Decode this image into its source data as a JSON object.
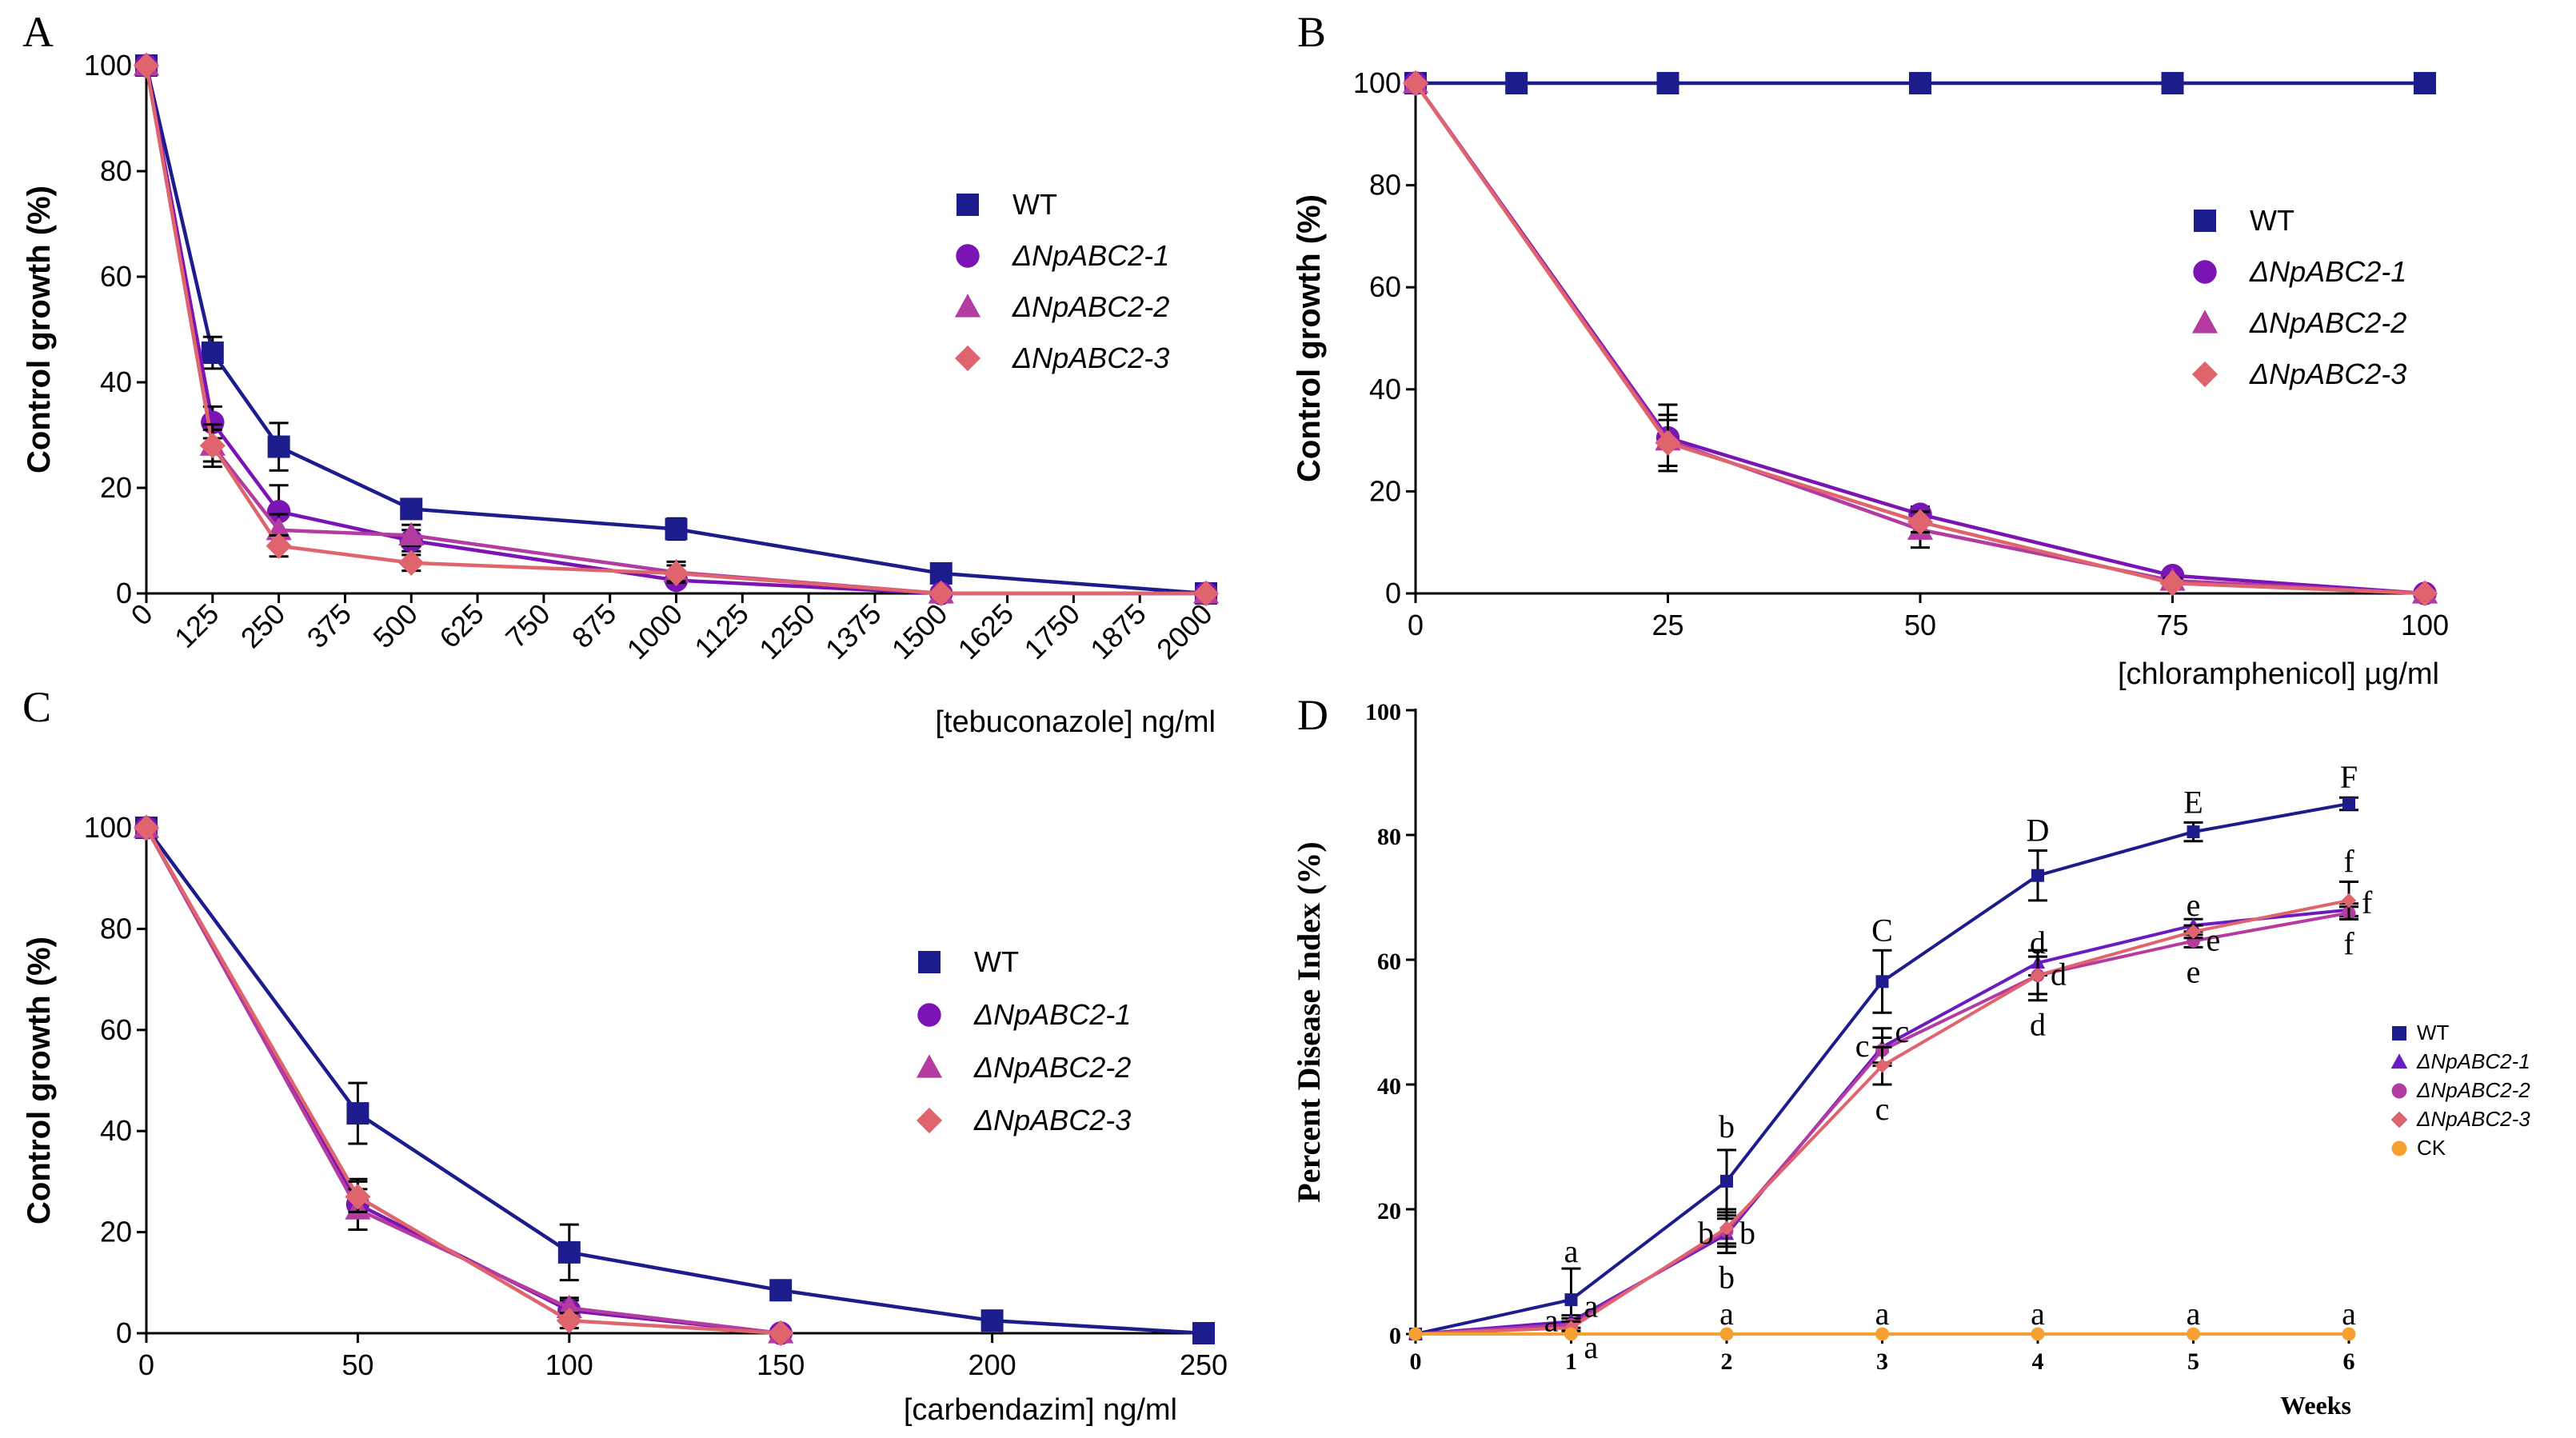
{
  "chart_data": [
    {
      "panel": "A",
      "type": "line",
      "xlabel": "[tebuconazole] ng/ml",
      "ylabel": "Control growth (%)",
      "x_scale": "categorical-linear",
      "xticks": [
        0,
        125,
        250,
        375,
        500,
        625,
        750,
        875,
        1000,
        1125,
        1250,
        1375,
        1500,
        1625,
        1750,
        1875,
        2000
      ],
      "yticks": [
        0,
        20,
        40,
        60,
        80,
        100
      ],
      "xlim": [
        0,
        2000
      ],
      "ylim": [
        0,
        100
      ],
      "legend_position": "right",
      "series": [
        {
          "name": "WT",
          "italic": false,
          "color": "#1c1c8c",
          "marker": "square",
          "x": [
            0,
            125,
            250,
            500,
            1000,
            1500,
            2000
          ],
          "y": [
            100,
            45.6,
            27.8,
            16,
            12.2,
            3.8,
            0
          ],
          "err": [
            0,
            3,
            4.5,
            1.5,
            2,
            0,
            0
          ]
        },
        {
          "name": "ΔNpABC2-1",
          "italic": true,
          "color": "#7a14b4",
          "marker": "circle",
          "x": [
            0,
            125,
            250,
            500,
            1000,
            1500,
            2000
          ],
          "y": [
            100,
            32.4,
            15.5,
            10,
            2.5,
            0,
            0
          ],
          "err": [
            0,
            3,
            5,
            2,
            1,
            0,
            0
          ]
        },
        {
          "name": "ΔNpABC2-2",
          "italic": true,
          "color": "#b43ca0",
          "marker": "triangle",
          "x": [
            0,
            125,
            250,
            500,
            1000,
            1500,
            2000
          ],
          "y": [
            100,
            28,
            12,
            11,
            4,
            0,
            0
          ],
          "err": [
            0,
            3,
            3,
            2,
            2,
            0,
            0
          ]
        },
        {
          "name": "ΔNpABC2-3",
          "italic": true,
          "color": "#e0646e",
          "marker": "diamond",
          "x": [
            0,
            125,
            250,
            500,
            1000,
            1500,
            2000
          ],
          "y": [
            100,
            28,
            9,
            5.8,
            3.8,
            0,
            0
          ],
          "err": [
            0,
            4,
            2,
            1.5,
            1.5,
            0,
            0
          ]
        }
      ]
    },
    {
      "panel": "B",
      "type": "line",
      "xlabel": "[chloramphenicol] µg/ml",
      "ylabel": "Control growth (%)",
      "xticks": [
        0,
        25,
        50,
        75,
        100
      ],
      "yticks": [
        0,
        20,
        40,
        60,
        80,
        100
      ],
      "xlim": [
        0,
        100
      ],
      "ylim": [
        0,
        100
      ],
      "legend_position": "right",
      "series": [
        {
          "name": "WT",
          "italic": false,
          "color": "#1c1c8c",
          "marker": "square",
          "x": [
            0,
            10,
            25,
            50,
            75,
            100
          ],
          "y": [
            100,
            100,
            100,
            100,
            100,
            100
          ],
          "err": [
            0,
            0,
            0,
            0,
            0,
            0
          ]
        },
        {
          "name": "ΔNpABC2-1",
          "italic": true,
          "color": "#7a14b4",
          "marker": "circle",
          "x": [
            0,
            25,
            50,
            75,
            100
          ],
          "y": [
            100,
            30.5,
            15.5,
            3.5,
            0
          ],
          "err": [
            0,
            6.5,
            1.5,
            0.5,
            0
          ]
        },
        {
          "name": "ΔNpABC2-2",
          "italic": true,
          "color": "#b43ca0",
          "marker": "triangle",
          "x": [
            0,
            25,
            50,
            75,
            100
          ],
          "y": [
            100,
            30,
            12.5,
            2.5,
            0
          ],
          "err": [
            0,
            5,
            3.5,
            0.5,
            0
          ]
        },
        {
          "name": "ΔNpABC2-3",
          "italic": true,
          "color": "#e0646e",
          "marker": "diamond",
          "x": [
            0,
            25,
            50,
            75,
            100
          ],
          "y": [
            100,
            29.5,
            14,
            2,
            0
          ],
          "err": [
            0,
            4.5,
            2,
            0.5,
            0
          ]
        }
      ]
    },
    {
      "panel": "C",
      "type": "line",
      "xlabel": "[carbendazim] ng/ml",
      "ylabel": "Control growth (%)",
      "xticks": [
        0,
        50,
        100,
        150,
        200,
        250
      ],
      "yticks": [
        0,
        20,
        40,
        60,
        80,
        100
      ],
      "xlim": [
        0,
        250
      ],
      "ylim": [
        0,
        100
      ],
      "legend_position": "right",
      "series": [
        {
          "name": "WT",
          "italic": false,
          "color": "#1c1c8c",
          "marker": "square",
          "x": [
            0,
            50,
            100,
            150,
            200,
            250
          ],
          "y": [
            100,
            43.5,
            16,
            8.5,
            2.5,
            0
          ],
          "err": [
            0,
            6,
            5.5,
            1,
            0.5,
            0
          ]
        },
        {
          "name": "ΔNpABC2-1",
          "italic": true,
          "color": "#7a14b4",
          "marker": "circle",
          "x": [
            0,
            50,
            100,
            150
          ],
          "y": [
            100,
            25.5,
            4.5,
            0
          ],
          "err": [
            0,
            5,
            2,
            0
          ]
        },
        {
          "name": "ΔNpABC2-2",
          "italic": true,
          "color": "#b43ca0",
          "marker": "triangle",
          "x": [
            0,
            50,
            100,
            150
          ],
          "y": [
            100,
            24.5,
            5,
            0
          ],
          "err": [
            0,
            4,
            2,
            0
          ]
        },
        {
          "name": "ΔNpABC2-3",
          "italic": true,
          "color": "#e0646e",
          "marker": "diamond",
          "x": [
            0,
            50,
            100,
            150
          ],
          "y": [
            100,
            27,
            2.5,
            0
          ],
          "err": [
            0,
            3,
            1.5,
            0
          ]
        }
      ]
    },
    {
      "panel": "D",
      "type": "line",
      "xlabel": "Weeks",
      "ylabel": "Percent Disease Index (%)",
      "xticks": [
        0,
        1,
        2,
        3,
        4,
        5,
        6
      ],
      "yticks": [
        0,
        20,
        40,
        60,
        80,
        100
      ],
      "xlim": [
        0,
        6
      ],
      "ylim": [
        0,
        100
      ],
      "legend_position": "right",
      "series": [
        {
          "name": "WT",
          "italic": false,
          "color": "#1c1c8c",
          "marker": "square",
          "x": [
            0,
            1,
            2,
            3,
            4,
            5,
            6
          ],
          "y": [
            0,
            5.5,
            24.5,
            56.5,
            73.5,
            80.5,
            85
          ],
          "err": [
            0,
            5,
            5,
            5,
            4,
            1.5,
            1
          ]
        },
        {
          "name": "ΔNpABC2-1",
          "italic": true,
          "color": "#6a1cc0",
          "marker": "triangle",
          "x": [
            0,
            1,
            2,
            3,
            4,
            5,
            6
          ],
          "y": [
            0,
            2,
            16,
            46,
            59.5,
            65.5,
            68
          ],
          "err": [
            0,
            1,
            3,
            3,
            2,
            1,
            1
          ]
        },
        {
          "name": "ΔNpABC2-2",
          "italic": true,
          "color": "#b43ca0",
          "marker": "circle",
          "x": [
            0,
            1,
            2,
            3,
            4,
            5,
            6
          ],
          "y": [
            0,
            1.5,
            16.5,
            45.5,
            57.5,
            63,
            67.5
          ],
          "err": [
            0,
            1,
            2,
            2,
            3,
            1,
            1
          ]
        },
        {
          "name": "ΔNpABC2-3",
          "italic": true,
          "color": "#e0646e",
          "marker": "diamond",
          "x": [
            0,
            1,
            2,
            3,
            4,
            5,
            6
          ],
          "y": [
            0,
            1,
            17,
            43,
            57.5,
            64.5,
            69.5
          ],
          "err": [
            0,
            1,
            3,
            3,
            4,
            1,
            3
          ]
        },
        {
          "name": "CK",
          "italic": false,
          "color": "#f5a030",
          "marker": "circle",
          "x": [
            0,
            1,
            2,
            3,
            4,
            5,
            6
          ],
          "y": [
            0,
            0,
            0,
            0,
            0,
            0,
            0
          ],
          "err": [
            0,
            0,
            0,
            0,
            0,
            0,
            0
          ]
        }
      ],
      "annotations": [
        {
          "x": 1,
          "y": 10,
          "text": "a",
          "place": "above"
        },
        {
          "x": 1,
          "y": 2,
          "text": "a",
          "place": "right-up"
        },
        {
          "x": 1,
          "y": 2,
          "text": "a",
          "place": "left"
        },
        {
          "x": 1,
          "y": 0,
          "text": "a",
          "place": "right-down"
        },
        {
          "x": 2,
          "y": 30,
          "text": "b",
          "place": "above"
        },
        {
          "x": 2,
          "y": 16,
          "text": "b",
          "place": "left"
        },
        {
          "x": 2,
          "y": 16,
          "text": "b",
          "place": "right"
        },
        {
          "x": 2,
          "y": 13,
          "text": "b",
          "place": "below"
        },
        {
          "x": 3,
          "y": 61.5,
          "text": "C",
          "place": "above"
        },
        {
          "x": 3,
          "y": 46,
          "text": "c",
          "place": "left"
        },
        {
          "x": 3,
          "y": 46,
          "text": "c",
          "place": "right-up"
        },
        {
          "x": 3,
          "y": 40,
          "text": "c",
          "place": "below"
        },
        {
          "x": 4,
          "y": 77.5,
          "text": "D",
          "place": "above"
        },
        {
          "x": 4,
          "y": 59.5,
          "text": "d",
          "place": "above"
        },
        {
          "x": 4,
          "y": 57.5,
          "text": "d",
          "place": "right"
        },
        {
          "x": 4,
          "y": 53.5,
          "text": "d",
          "place": "below"
        },
        {
          "x": 5,
          "y": 82,
          "text": "E",
          "place": "above"
        },
        {
          "x": 5,
          "y": 65.5,
          "text": "e",
          "place": "above"
        },
        {
          "x": 5,
          "y": 63,
          "text": "e",
          "place": "right"
        },
        {
          "x": 5,
          "y": 62,
          "text": "e",
          "place": "below"
        },
        {
          "x": 6,
          "y": 86,
          "text": "F",
          "place": "above"
        },
        {
          "x": 6,
          "y": 72.5,
          "text": "f",
          "place": "above"
        },
        {
          "x": 6,
          "y": 69,
          "text": "f",
          "place": "right"
        },
        {
          "x": 6,
          "y": 66.5,
          "text": "f",
          "place": "below"
        },
        {
          "x": 2,
          "y": 0,
          "text": "a",
          "place": "above"
        },
        {
          "x": 3,
          "y": 0,
          "text": "a",
          "place": "above"
        },
        {
          "x": 4,
          "y": 0,
          "text": "a",
          "place": "above"
        },
        {
          "x": 5,
          "y": 0,
          "text": "a",
          "place": "above"
        },
        {
          "x": 6,
          "y": 0,
          "text": "a",
          "place": "above"
        }
      ]
    }
  ]
}
